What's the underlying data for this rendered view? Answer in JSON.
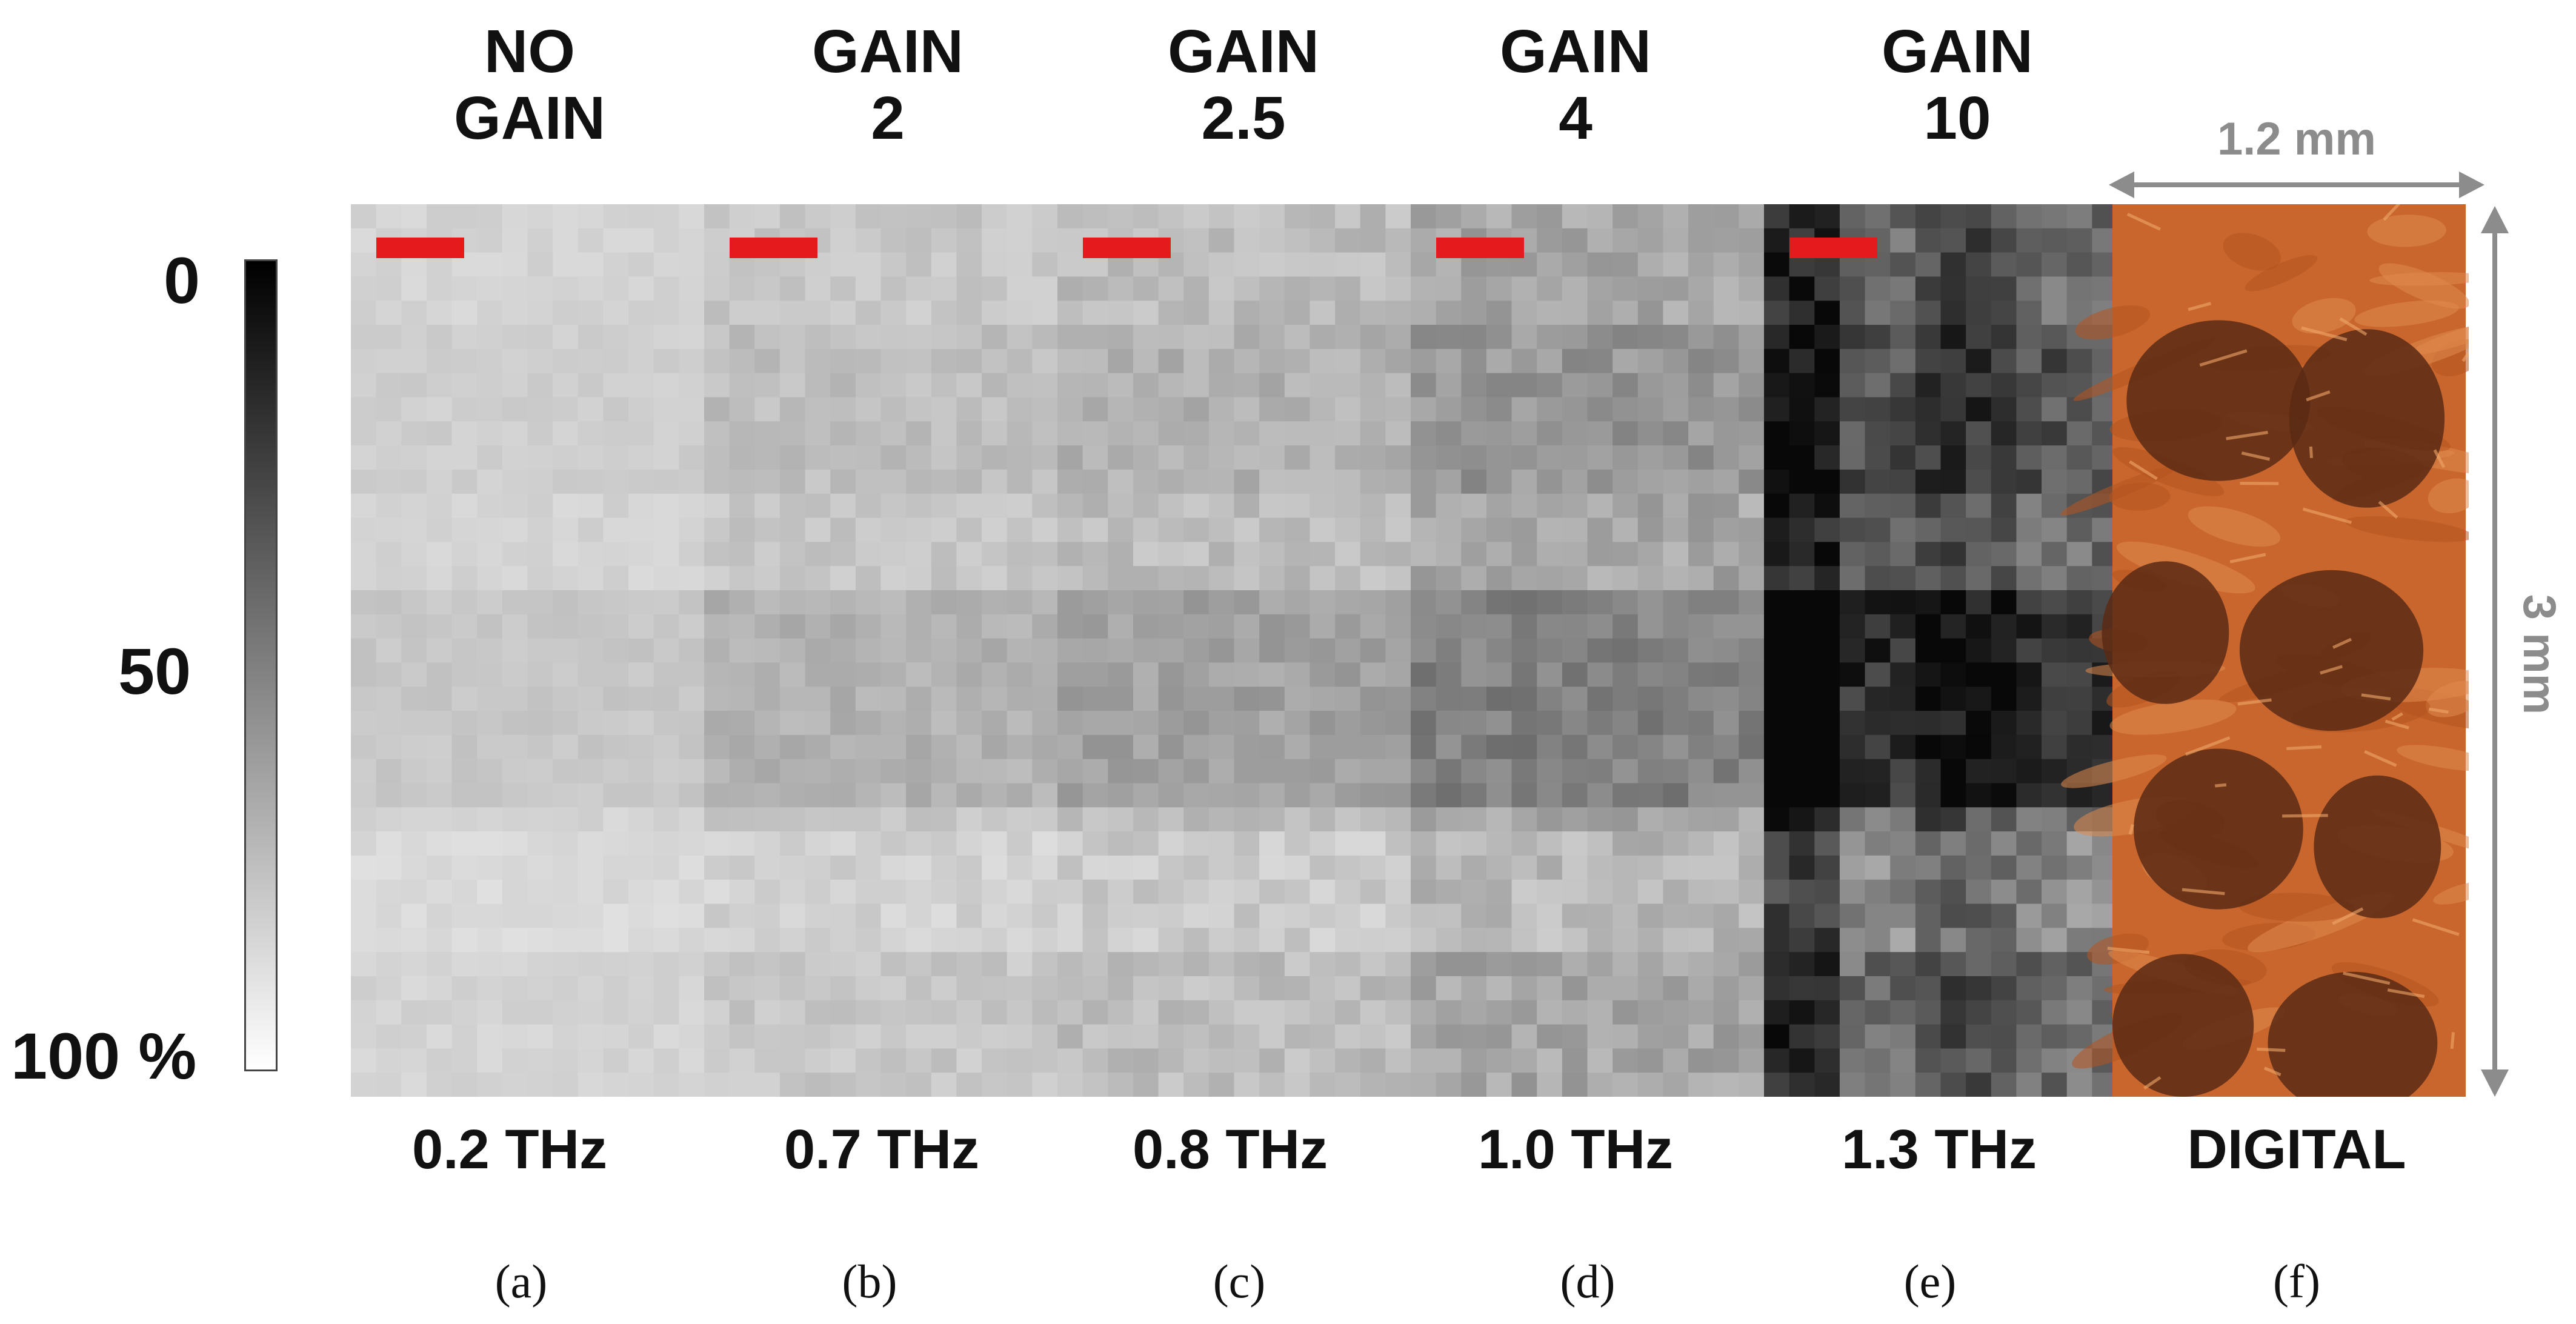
{
  "scale": {
    "top_label": "0",
    "mid_label": "50",
    "bottom_label": "100 %"
  },
  "panels": [
    {
      "gain": [
        "NO",
        "GAIN"
      ],
      "frequency": "0.2 THz",
      "letter": "(a)",
      "tone": 0.83,
      "contrast": 0.04
    },
    {
      "gain": [
        "GAIN",
        "2"
      ],
      "frequency": "0.7 THz",
      "letter": "(b)",
      "tone": 0.78,
      "contrast": 0.07
    },
    {
      "gain": [
        "GAIN",
        "2.5"
      ],
      "frequency": "0.8 THz",
      "letter": "(c)",
      "tone": 0.74,
      "contrast": 0.09
    },
    {
      "gain": [
        "GAIN",
        "4"
      ],
      "frequency": "1.0 THz",
      "letter": "(d)",
      "tone": 0.65,
      "contrast": 0.12
    },
    {
      "gain": [
        "GAIN",
        "10"
      ],
      "frequency": "1.3 THz",
      "letter": "(e)",
      "tone": 0.42,
      "contrast": 0.2
    },
    {
      "gain": [],
      "frequency": "DIGITAL",
      "letter": "(f)"
    }
  ],
  "dimensions": {
    "width": "1.2 mm",
    "height": "3 mm"
  },
  "colors": {
    "marker": "#e41a1c",
    "dimension": "#8c8c8c",
    "fabric": "#c8662e",
    "fabric_dark": "#5a2a14"
  }
}
